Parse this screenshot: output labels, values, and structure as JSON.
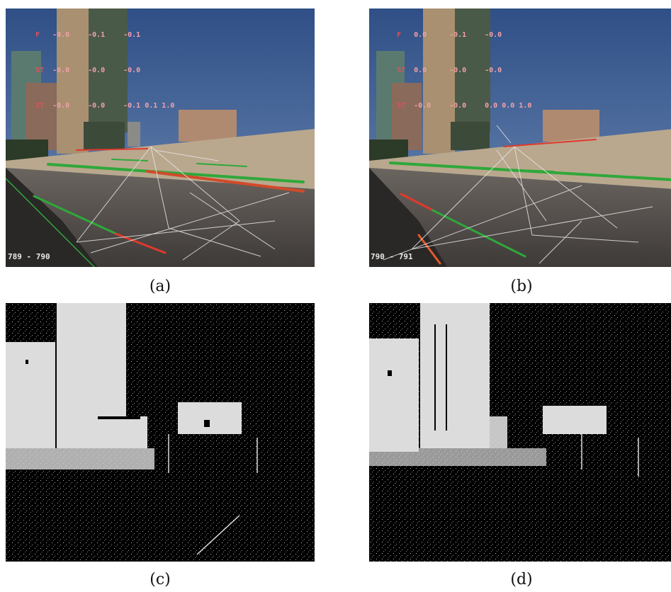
{
  "figure": {
    "panels": [
      {
        "caption": "(a)",
        "frame_label": "789 - 790",
        "hud_rows": [
          [
            "-0.0",
            "-0.1",
            "-0.1"
          ],
          [
            "-0.0",
            "-0.0",
            "-0.0"
          ],
          [
            "-0.0",
            "-0.0",
            "-0.1 0.1 1.0"
          ]
        ]
      },
      {
        "caption": "(b)",
        "frame_label": "790 - 791",
        "hud_rows": [
          [
            "0.0",
            "-0.1",
            "-0.0"
          ],
          [
            "0.0",
            "-0.0",
            "-0.0"
          ],
          [
            "-0.0",
            "-0.0",
            "0.0 0.0 1.0"
          ]
        ]
      },
      {
        "caption": "(c)"
      },
      {
        "caption": "(d)"
      }
    ],
    "colors": {
      "sky": "#3f5a8c",
      "road": "#4d4845",
      "wall": "#b9a88e",
      "line_green": "#2fa83a",
      "line_red": "#e0392d",
      "mask_fg": "#dcdcdc",
      "mask_bg": "#000000"
    }
  }
}
